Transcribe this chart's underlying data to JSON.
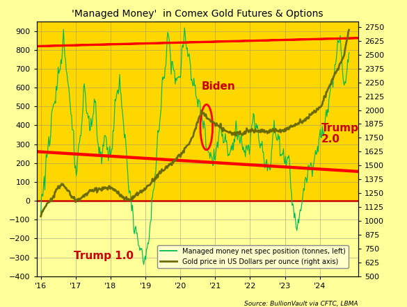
{
  "title": "'Managed Money'  in Comex Gold Futures & Options",
  "source": "Source: BullionVault via CFTC, LBMA",
  "left_ylim": [
    -400,
    950
  ],
  "right_ylim": [
    500,
    2800
  ],
  "left_yticks": [
    -400,
    -300,
    -200,
    -100,
    0,
    100,
    200,
    300,
    400,
    500,
    600,
    700,
    800,
    900
  ],
  "right_yticks": [
    500,
    625,
    750,
    875,
    1000,
    1125,
    1250,
    1375,
    1500,
    1625,
    1750,
    1875,
    2000,
    2125,
    2250,
    2375,
    2500,
    2625,
    2750
  ],
  "xtick_positions": [
    2016,
    2017,
    2018,
    2019,
    2020,
    2021,
    2022,
    2023,
    2024
  ],
  "xtick_labels": [
    "'16",
    "'17",
    "'18",
    "'19",
    "'20",
    "'21",
    "'22",
    "'23",
    "'24"
  ],
  "bg_color_top": "#FFD700",
  "bg_color_bottom": "#FFFF99",
  "fig_bg_color": "#FFFF99",
  "legend_labels": [
    "Managed money net spec position (tonnes, left)",
    "Gold price in US Dollars per ounce (right axis)"
  ],
  "line_color_green": "#00BB55",
  "line_color_gold": "#6B6B00",
  "zeroline_color": "#CC0000",
  "annotation_color": "#CC0000",
  "xlim": [
    2015.88,
    2025.1
  ]
}
